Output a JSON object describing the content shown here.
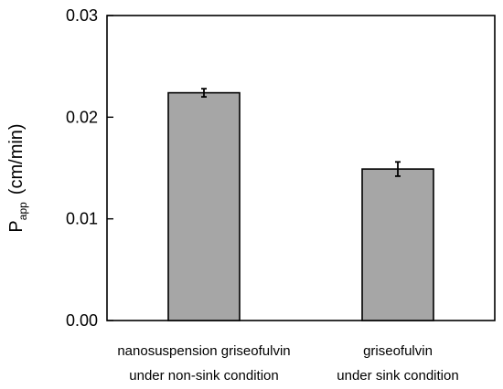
{
  "chart_data": {
    "type": "bar",
    "title": "",
    "xlabel": "",
    "ylabel": {
      "main": "P",
      "subscript": "app",
      "unit": "(cm/min)"
    },
    "ylim": [
      0.0,
      0.03
    ],
    "yticks": [
      "0.00",
      "0.01",
      "0.02",
      "0.03"
    ],
    "categories": [
      [
        "nanosuspension griseofulvin",
        "under non-sink condition"
      ],
      [
        "griseofulvin",
        "under sink condition"
      ]
    ],
    "values": [
      0.0224,
      0.0149
    ],
    "errors": [
      0.0004,
      0.0007
    ],
    "grid": false,
    "colors": {
      "bar_fill": "#a6a6a6",
      "bar_stroke": "#000000",
      "axis": "#000000"
    }
  }
}
